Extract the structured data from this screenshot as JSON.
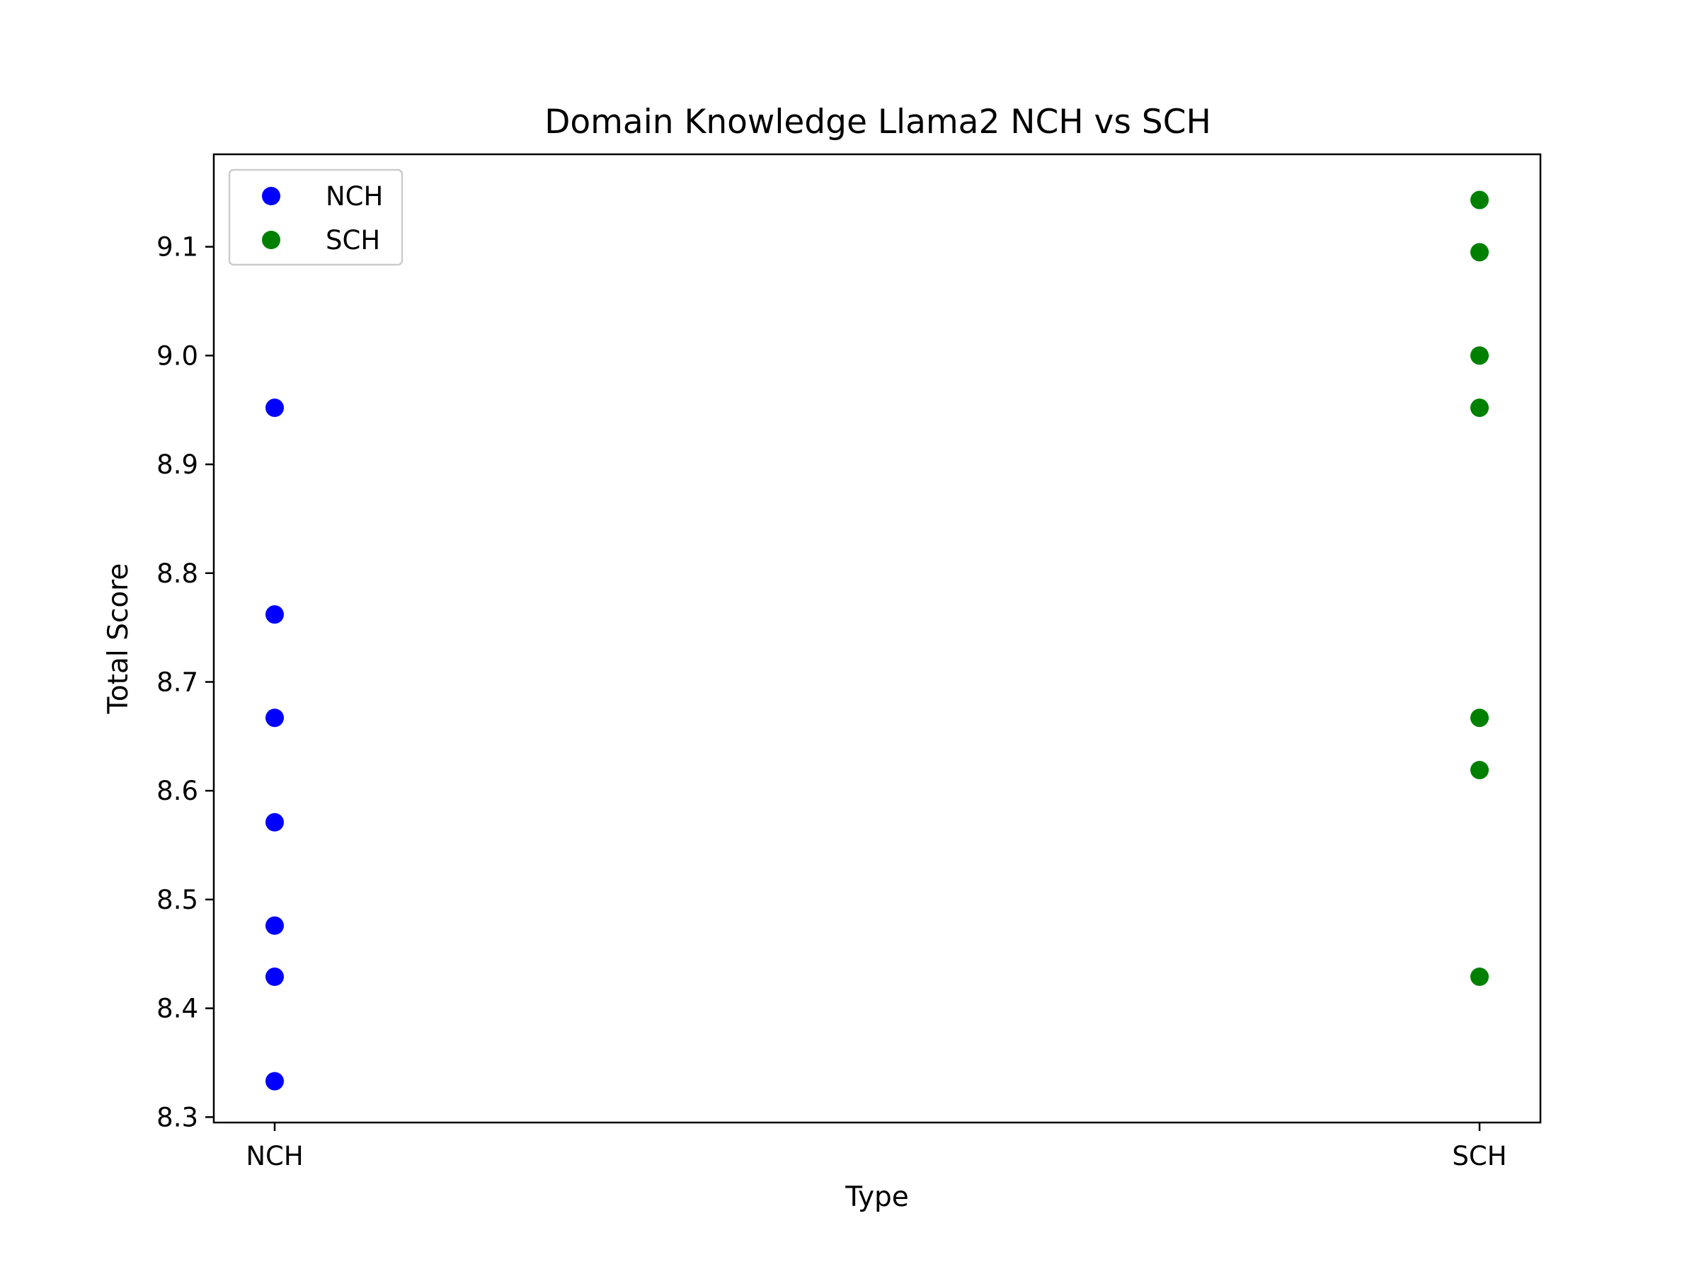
{
  "chart_data": {
    "type": "scatter",
    "title": "Domain Knowledge Llama2 NCH vs SCH",
    "xlabel": "Type",
    "ylabel": "Total Score",
    "categories": [
      "NCH",
      "SCH"
    ],
    "ylim": [
      8.295,
      9.185
    ],
    "yticks": [
      8.3,
      8.4,
      8.5,
      8.6,
      8.7,
      8.8,
      8.9,
      9.0,
      9.1
    ],
    "ytick_labels": [
      "8.3",
      "8.4",
      "8.5",
      "8.6",
      "8.7",
      "8.8",
      "8.9",
      "9.0",
      "9.1"
    ],
    "legend_position": "upper-left",
    "grid": false,
    "series": [
      {
        "name": "NCH",
        "color": "#0000ff",
        "category": "NCH",
        "values": [
          8.952,
          8.762,
          8.667,
          8.571,
          8.476,
          8.429,
          8.333
        ]
      },
      {
        "name": "SCH",
        "color": "#008000",
        "category": "SCH",
        "values": [
          9.143,
          9.095,
          9.0,
          8.952,
          8.667,
          8.619,
          8.429
        ]
      }
    ]
  }
}
